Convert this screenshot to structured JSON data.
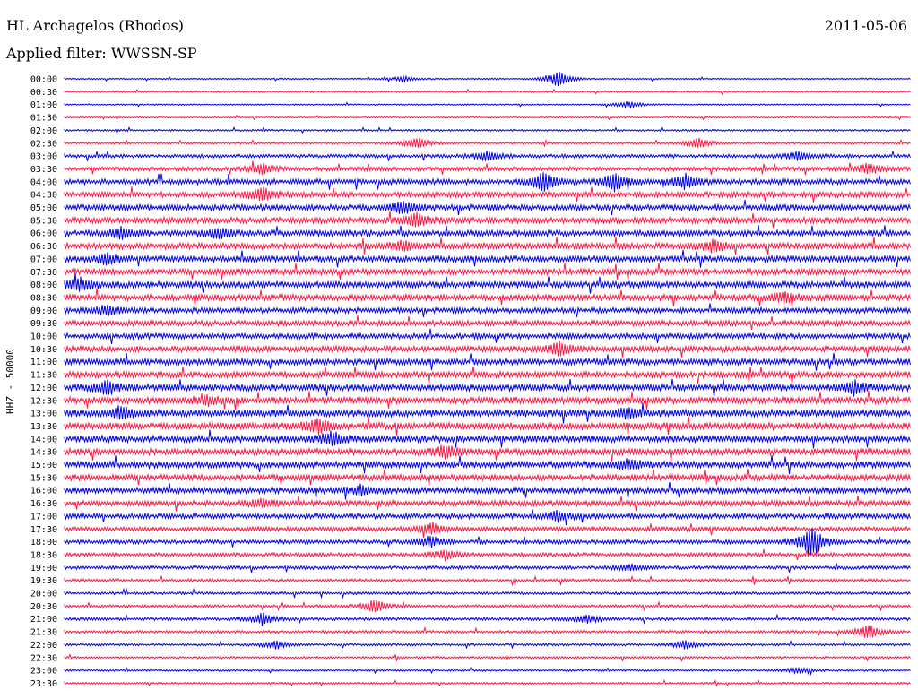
{
  "header": {
    "station": "HL Archagelos (Rhodos)",
    "date": "2011-05-06",
    "filter": "Applied filter: WWSSN-SP"
  },
  "chart_data": {
    "type": "line",
    "title": "HL Archagelos (Rhodos)",
    "subtitle": "Applied filter: WWSSN-SP",
    "ylabel": "HHZ - 50000",
    "xlabel": "",
    "grid": false,
    "colors": {
      "even_rows": "#0000e6",
      "odd_rows": "#ff1744"
    },
    "rows": [
      "00:00",
      "00:30",
      "01:00",
      "01:30",
      "02:00",
      "02:30",
      "03:00",
      "03:30",
      "04:00",
      "04:30",
      "05:00",
      "05:30",
      "06:00",
      "06:30",
      "07:00",
      "07:30",
      "08:00",
      "08:30",
      "09:00",
      "09:30",
      "10:00",
      "10:30",
      "11:00",
      "11:30",
      "12:00",
      "12:30",
      "13:00",
      "13:30",
      "14:00",
      "14:30",
      "15:00",
      "15:30",
      "16:00",
      "16:30",
      "17:00",
      "17:30",
      "18:00",
      "18:30",
      "19:00",
      "19:30",
      "20:00",
      "20:30",
      "21:00",
      "21:30",
      "22:00",
      "22:30",
      "23:00",
      "23:30"
    ],
    "noise_level": [
      0.5,
      0.6,
      0.5,
      0.5,
      0.7,
      0.8,
      1.3,
      1.5,
      2.0,
      2.0,
      2.2,
      2.2,
      2.2,
      2.3,
      2.3,
      2.2,
      2.4,
      2.3,
      2.0,
      2.0,
      2.0,
      2.1,
      2.3,
      2.3,
      2.5,
      2.5,
      2.6,
      2.6,
      2.5,
      2.4,
      2.4,
      2.2,
      2.2,
      2.0,
      1.9,
      1.6,
      1.5,
      1.4,
      1.3,
      1.1,
      1.0,
      1.0,
      1.1,
      1.0,
      0.9,
      0.8,
      0.7,
      0.7
    ],
    "events": [
      {
        "row": 0,
        "minute": 17.5,
        "amplitude": 10
      },
      {
        "row": 0,
        "minute": 12.0,
        "amplitude": 3
      },
      {
        "row": 2,
        "minute": 20.0,
        "amplitude": 4
      },
      {
        "row": 5,
        "minute": 12.5,
        "amplitude": 7
      },
      {
        "row": 5,
        "minute": 22.5,
        "amplitude": 6
      },
      {
        "row": 6,
        "minute": 15.0,
        "amplitude": 6
      },
      {
        "row": 6,
        "minute": 26.0,
        "amplitude": 5
      },
      {
        "row": 7,
        "minute": 7.0,
        "amplitude": 6
      },
      {
        "row": 7,
        "minute": 28.5,
        "amplitude": 7
      },
      {
        "row": 8,
        "minute": 17.0,
        "amplitude": 12
      },
      {
        "row": 8,
        "minute": 19.5,
        "amplitude": 10
      },
      {
        "row": 8,
        "minute": 22.0,
        "amplitude": 8
      },
      {
        "row": 9,
        "minute": 7.0,
        "amplitude": 8
      },
      {
        "row": 10,
        "minute": 12.0,
        "amplitude": 8
      },
      {
        "row": 11,
        "minute": 12.5,
        "amplitude": 9
      },
      {
        "row": 12,
        "minute": 2.0,
        "amplitude": 7
      },
      {
        "row": 12,
        "minute": 5.5,
        "amplitude": 6
      },
      {
        "row": 13,
        "minute": 12.0,
        "amplitude": 5
      },
      {
        "row": 13,
        "minute": 23.0,
        "amplitude": 7
      },
      {
        "row": 14,
        "minute": 1.5,
        "amplitude": 6
      },
      {
        "row": 16,
        "minute": 0.5,
        "amplitude": 8
      },
      {
        "row": 17,
        "minute": 25.5,
        "amplitude": 6
      },
      {
        "row": 18,
        "minute": 1.5,
        "amplitude": 6
      },
      {
        "row": 21,
        "minute": 17.5,
        "amplitude": 8
      },
      {
        "row": 24,
        "minute": 1.5,
        "amplitude": 8
      },
      {
        "row": 24,
        "minute": 28.0,
        "amplitude": 7
      },
      {
        "row": 25,
        "minute": 5.0,
        "amplitude": 6
      },
      {
        "row": 26,
        "minute": 2.0,
        "amplitude": 7
      },
      {
        "row": 26,
        "minute": 20.0,
        "amplitude": 6
      },
      {
        "row": 27,
        "minute": 9.0,
        "amplitude": 8
      },
      {
        "row": 28,
        "minute": 9.5,
        "amplitude": 8
      },
      {
        "row": 29,
        "minute": 13.5,
        "amplitude": 7
      },
      {
        "row": 30,
        "minute": 20.0,
        "amplitude": 6
      },
      {
        "row": 32,
        "minute": 10.5,
        "amplitude": 6
      },
      {
        "row": 33,
        "minute": 7.0,
        "amplitude": 5
      },
      {
        "row": 34,
        "minute": 17.5,
        "amplitude": 5
      },
      {
        "row": 35,
        "minute": 13.0,
        "amplitude": 7
      },
      {
        "row": 36,
        "minute": 26.5,
        "amplitude": 20
      },
      {
        "row": 36,
        "minute": 13.0,
        "amplitude": 7
      },
      {
        "row": 37,
        "minute": 13.5,
        "amplitude": 6
      },
      {
        "row": 38,
        "minute": 20.0,
        "amplitude": 4
      },
      {
        "row": 41,
        "minute": 11.0,
        "amplitude": 8
      },
      {
        "row": 42,
        "minute": 7.0,
        "amplitude": 7
      },
      {
        "row": 42,
        "minute": 18.5,
        "amplitude": 5
      },
      {
        "row": 43,
        "minute": 28.5,
        "amplitude": 9
      },
      {
        "row": 44,
        "minute": 7.5,
        "amplitude": 5
      },
      {
        "row": 44,
        "minute": 22.0,
        "amplitude": 5
      },
      {
        "row": 46,
        "minute": 26.0,
        "amplitude": 4
      }
    ]
  }
}
